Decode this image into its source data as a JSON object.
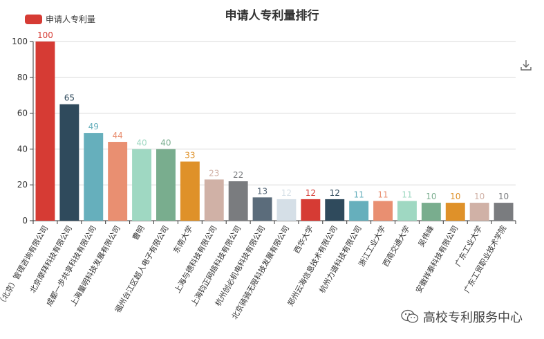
{
  "chart_data": {
    "type": "bar",
    "title": "申请人专利量排行",
    "legend": {
      "label": "申请人专利量",
      "color": "#d63b34",
      "position": "top-left"
    },
    "categories": [
      "（北京）管理咨询有限公司",
      "北京摩拜科技有限公司",
      "成都一步共享科技有限公司",
      "上海量明科技发展有限公司",
      "曹明",
      "福州台江区超人电子有限公司",
      "东南大学",
      "上海与德科技有限公司",
      "上海钧正网络科技有限公司",
      "杭州创必机电科技有限公司",
      "北京骑骑无限科技发展有限公司",
      "西华大学",
      "郑州云海信息技术有限公司",
      "杭州力谱科技有限公司",
      "浙江工业大学",
      "西南交通大学",
      "吴伟峰",
      "安徽祥泰科技有限公司",
      "广东工业大学",
      "广东工贸职业技术学院"
    ],
    "values": [
      100,
      65,
      49,
      44,
      40,
      40,
      33,
      23,
      22,
      13,
      12,
      12,
      12,
      11,
      11,
      11,
      10,
      10,
      10,
      10
    ],
    "colors": [
      "#d63b34",
      "#2f4a5c",
      "#66afbc",
      "#e98f71",
      "#9fd8c2",
      "#79ad8e",
      "#df9129",
      "#d0b1a6",
      "#7a7c7f",
      "#5b6c7b",
      "#d5dfe7",
      "#d63b34",
      "#2f4a5c",
      "#66afbc",
      "#e98f71",
      "#9fd8c2",
      "#79ad8e",
      "#df9129",
      "#d0b1a6",
      "#7a7c7f"
    ],
    "ylim": [
      0,
      100
    ],
    "yticks": [
      0,
      20,
      40,
      60,
      80,
      100
    ],
    "grid": true,
    "xlabel": "",
    "ylabel": ""
  },
  "watermark": {
    "text": "高校专利服务中心",
    "icon": "wechat-icon"
  },
  "toolbox": {
    "icon": "download-icon"
  }
}
